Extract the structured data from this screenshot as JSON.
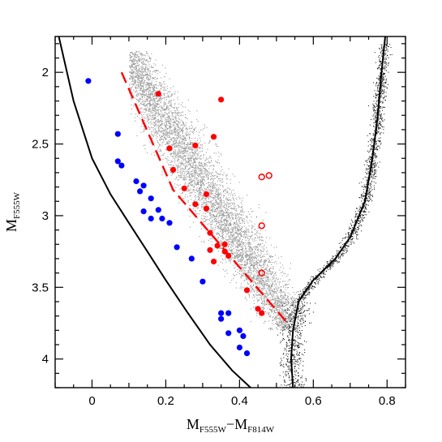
{
  "chart_data": {
    "type": "scatter",
    "title": "",
    "xlabel_main": "M",
    "xlabel_sub1": "F555W",
    "xlabel_mid": "−M",
    "xlabel_sub2": "F814W",
    "ylabel_main": "M",
    "ylabel_sub": "F555W",
    "xlim": [
      -0.1,
      0.85
    ],
    "ylim": [
      4.2,
      1.75
    ],
    "y_inverted": true,
    "x_ticks": [
      {
        "value": 0,
        "label": "0"
      },
      {
        "value": 0.2,
        "label": "0.2"
      },
      {
        "value": 0.4,
        "label": "0.4"
      },
      {
        "value": 0.6,
        "label": "0.6"
      },
      {
        "value": 0.8,
        "label": "0.8"
      }
    ],
    "y_ticks": [
      {
        "value": 2,
        "label": "2"
      },
      {
        "value": 2.5,
        "label": "2.5"
      },
      {
        "value": 3,
        "label": "3"
      },
      {
        "value": 3.5,
        "label": "3.5"
      },
      {
        "value": 4,
        "label": "4"
      }
    ],
    "grid": false,
    "series": [
      {
        "style": "blue-filled-circles",
        "color": "#0000ff",
        "points": [
          [
            -0.01,
            2.06
          ],
          [
            0.07,
            2.43
          ],
          [
            0.07,
            2.62
          ],
          [
            0.08,
            2.65
          ],
          [
            0.12,
            2.76
          ],
          [
            0.14,
            2.79
          ],
          [
            0.13,
            2.83
          ],
          [
            0.16,
            2.88
          ],
          [
            0.14,
            2.97
          ],
          [
            0.18,
            2.96
          ],
          [
            0.16,
            3.02
          ],
          [
            0.19,
            3.02
          ],
          [
            0.21,
            3.05
          ],
          [
            0.23,
            3.22
          ],
          [
            0.27,
            3.3
          ],
          [
            0.3,
            3.46
          ],
          [
            0.35,
            3.68
          ],
          [
            0.37,
            3.68
          ],
          [
            0.35,
            3.72
          ],
          [
            0.4,
            3.8
          ],
          [
            0.37,
            3.82
          ],
          [
            0.41,
            3.84
          ],
          [
            0.4,
            3.92
          ],
          [
            0.42,
            3.96
          ]
        ]
      },
      {
        "style": "red-filled-circles",
        "color": "#ff0000",
        "points": [
          [
            0.18,
            2.15
          ],
          [
            0.35,
            2.19
          ],
          [
            0.21,
            2.53
          ],
          [
            0.28,
            2.51
          ],
          [
            0.33,
            2.45
          ],
          [
            0.22,
            2.68
          ],
          [
            0.25,
            2.81
          ],
          [
            0.31,
            2.85
          ],
          [
            0.28,
            2.92
          ],
          [
            0.31,
            2.95
          ],
          [
            0.32,
            3.12
          ],
          [
            0.34,
            3.21
          ],
          [
            0.36,
            3.2
          ],
          [
            0.36,
            3.25
          ],
          [
            0.32,
            3.24
          ],
          [
            0.37,
            3.28
          ],
          [
            0.33,
            3.32
          ],
          [
            0.42,
            3.52
          ],
          [
            0.45,
            3.65
          ],
          [
            0.46,
            3.68
          ]
        ]
      },
      {
        "style": "red-open-circles",
        "color": "#ff0000",
        "points": [
          [
            0.46,
            2.73
          ],
          [
            0.48,
            2.72
          ],
          [
            0.46,
            3.07
          ],
          [
            0.46,
            3.4
          ]
        ]
      },
      {
        "style": "gray-point-cloud",
        "color": "#999999",
        "description_band": [
          [
            0.12,
            2.05
          ],
          [
            0.55,
            3.75
          ]
        ]
      },
      {
        "style": "black-point-cloud",
        "color": "#000000"
      },
      {
        "style": "red-dashed-line",
        "color": "#ff0000",
        "points": [
          [
            0.08,
            2.0
          ],
          [
            0.22,
            2.82
          ],
          [
            0.53,
            3.75
          ]
        ]
      },
      {
        "style": "black-solid-curve-left",
        "color": "#000000",
        "points": [
          [
            -0.09,
            1.75
          ],
          [
            -0.05,
            2.2
          ],
          [
            0.0,
            2.6
          ],
          [
            0.05,
            2.85
          ],
          [
            0.1,
            3.05
          ],
          [
            0.15,
            3.25
          ],
          [
            0.2,
            3.45
          ],
          [
            0.26,
            3.68
          ],
          [
            0.32,
            3.9
          ],
          [
            0.38,
            4.08
          ],
          [
            0.43,
            4.2
          ]
        ]
      },
      {
        "style": "black-solid-curve-right",
        "color": "#000000",
        "points": [
          [
            0.545,
            4.2
          ],
          [
            0.54,
            4.0
          ],
          [
            0.545,
            3.8
          ],
          [
            0.56,
            3.6
          ],
          [
            0.6,
            3.45
          ],
          [
            0.66,
            3.3
          ],
          [
            0.7,
            3.15
          ],
          [
            0.74,
            2.9
          ],
          [
            0.76,
            2.6
          ],
          [
            0.775,
            2.3
          ],
          [
            0.785,
            2.0
          ],
          [
            0.795,
            1.75
          ]
        ]
      }
    ]
  }
}
